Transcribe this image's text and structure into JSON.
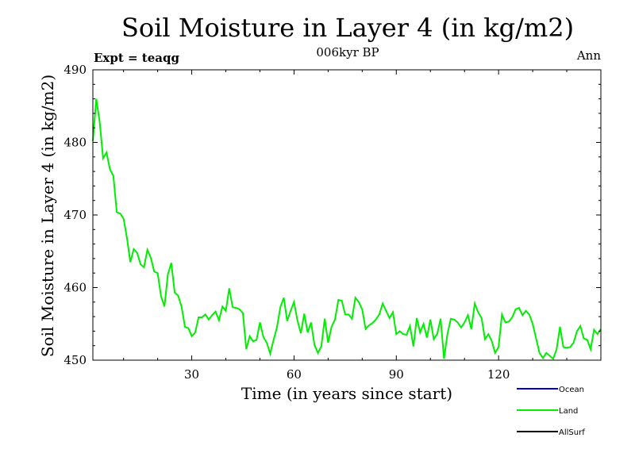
{
  "chart_data": {
    "type": "line",
    "title": "Soil Moisture in Layer 4 (in kg/m2)",
    "subtitle": "006kyr BP",
    "experiment": "Expt = teaqg",
    "season": "Ann",
    "xlabel": "Time (in years since start)",
    "ylabel": "Soil Moisture in Layer 4 (in kg/m2)",
    "xlim": [
      1,
      150
    ],
    "ylim": [
      450,
      490
    ],
    "xticks": [
      30,
      60,
      90,
      120
    ],
    "yticks": [
      450,
      460,
      470,
      480,
      490
    ],
    "series": [
      {
        "name": "Ocean",
        "label": "Ocean",
        "color": "#0000cc",
        "values": []
      },
      {
        "name": "Land",
        "label": "Land",
        "color": "#00ee00",
        "values": [
          480.2,
          486.0,
          482.8,
          477.8,
          478.6,
          476.3,
          475.4,
          470.4,
          470.2,
          469.5,
          466.8,
          463.5,
          465.3,
          464.8,
          463.2,
          462.8,
          465.2,
          464.1,
          462.2,
          462.0,
          458.8,
          457.4,
          461.8,
          463.4,
          459.3,
          458.9,
          457.4,
          454.6,
          454.4,
          453.3,
          453.8,
          455.9,
          455.9,
          456.3,
          455.6,
          456.2,
          456.7,
          455.5,
          457.4,
          456.8,
          459.9,
          457.3,
          457.2,
          457.0,
          456.5,
          451.5,
          453.3,
          452.6,
          452.8,
          455.2,
          453.2,
          452.4,
          450.9,
          452.8,
          454.5,
          457.3,
          458.6,
          455.4,
          456.8,
          458.0,
          455.5,
          453.7,
          456.4,
          453.8,
          455.2,
          452.1,
          451.0,
          451.9,
          455.7,
          452.4,
          454.6,
          455.6,
          458.3,
          458.2,
          456.3,
          456.3,
          455.7,
          458.6,
          458.0,
          457.0,
          454.3,
          454.8,
          455.1,
          455.6,
          456.3,
          457.8,
          456.8,
          455.8,
          456.6,
          453.6,
          454.0,
          453.6,
          453.5,
          454.7,
          451.9,
          455.8,
          453.8,
          455.0,
          453.1,
          455.6,
          452.9,
          453.6,
          455.7,
          450.2,
          453.6,
          455.7,
          455.6,
          455.2,
          454.5,
          455.2,
          456.2,
          454.3,
          457.8,
          456.6,
          455.8,
          452.9,
          453.6,
          452.6,
          451.0,
          451.8,
          456.3,
          455.2,
          455.3,
          455.9,
          457.0,
          457.2,
          456.2,
          456.8,
          456.3,
          455.0,
          453.0,
          451.0,
          450.3,
          451.0,
          450.6,
          450.2,
          451.5,
          454.6,
          451.8,
          451.7,
          451.8,
          452.4,
          454.0,
          454.7,
          453.0,
          452.8,
          451.5,
          454.2,
          453.6,
          454.3
        ]
      },
      {
        "name": "AllSurf",
        "label": "AllSurf",
        "color": "#000000",
        "values": []
      }
    ]
  }
}
